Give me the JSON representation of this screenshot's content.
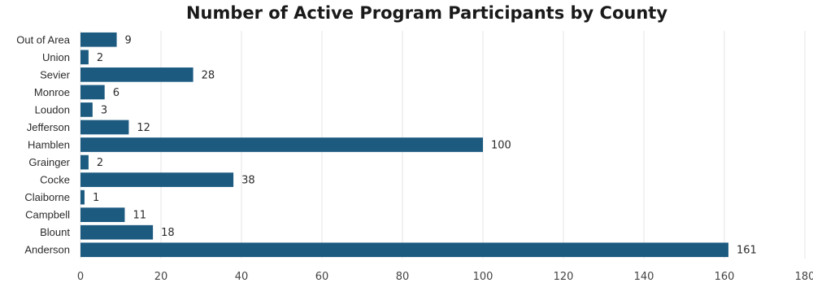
{
  "chart_data": {
    "type": "bar",
    "orientation": "horizontal",
    "title": "Number of Active Program Participants by County",
    "xlabel": "",
    "ylabel": "",
    "categories": [
      "Out of Area",
      "Union",
      "Sevier",
      "Monroe",
      "Loudon",
      "Jefferson",
      "Hamblen",
      "Grainger",
      "Cocke",
      "Claiborne",
      "Campbell",
      "Blount",
      "Anderson"
    ],
    "values": [
      9,
      2,
      28,
      6,
      3,
      12,
      100,
      2,
      38,
      1,
      11,
      18,
      161
    ],
    "xlim": [
      0,
      180
    ],
    "xticks": [
      0,
      20,
      40,
      60,
      80,
      100,
      120,
      140,
      160,
      180
    ],
    "grid": "vertical",
    "legend": "none",
    "bar_color": "#1c5a80",
    "grid_color": "#e6e6e6"
  }
}
